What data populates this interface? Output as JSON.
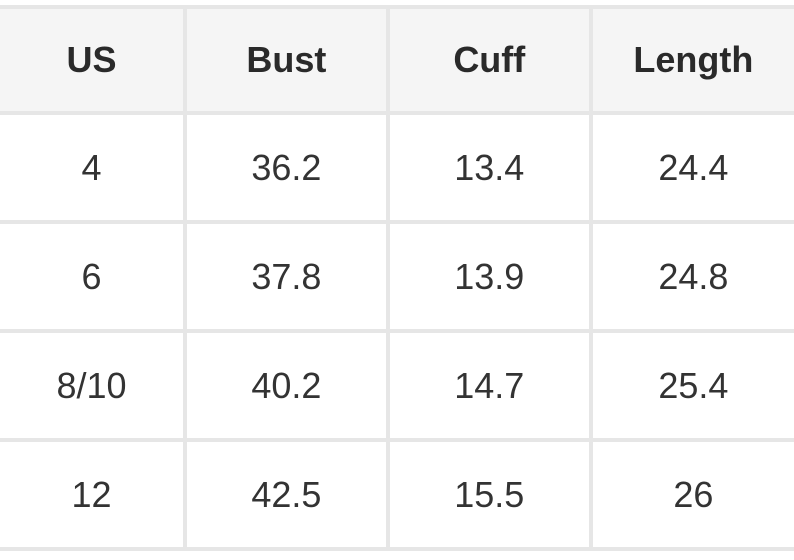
{
  "table": {
    "headers": [
      "US",
      "Bust",
      "Cuff",
      "Length"
    ],
    "rows": [
      [
        "4",
        "36.2",
        "13.4",
        "24.4"
      ],
      [
        "6",
        "37.8",
        "13.9",
        "24.8"
      ],
      [
        "8/10",
        "40.2",
        "14.7",
        "25.4"
      ],
      [
        "12",
        "42.5",
        "15.5",
        "26"
      ]
    ]
  }
}
